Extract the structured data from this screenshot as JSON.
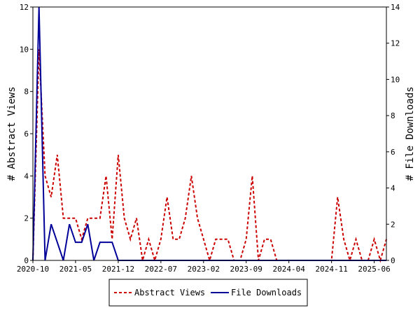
{
  "chart_data": {
    "type": "line",
    "title": "",
    "ylabel_left": "# Abstract Views",
    "ylabel_right": "# File Downloads",
    "ylim_left": [
      0,
      12
    ],
    "ylim_right": [
      0,
      14
    ],
    "yticks_left": [
      0,
      2,
      4,
      6,
      8,
      10,
      12
    ],
    "yticks_right": [
      0,
      2,
      4,
      6,
      8,
      10,
      12,
      14
    ],
    "x_tick_labels": [
      "2020-10",
      "2021-05",
      "2021-12",
      "2022-07",
      "2023-02",
      "2023-09",
      "2024-04",
      "2024-11",
      "2025-06"
    ],
    "x_range_months": [
      "2020-10",
      "2025-08"
    ],
    "grid": false,
    "legend_position": "bottom",
    "series": [
      {
        "name": "Abstract Views",
        "axis": "left",
        "color": "#cc0000",
        "style": "dashed",
        "x": [
          "2020-10",
          "2020-11",
          "2020-12",
          "2021-01",
          "2021-02",
          "2021-03",
          "2021-04",
          "2021-05",
          "2021-06",
          "2021-07",
          "2021-08",
          "2021-09",
          "2021-10",
          "2021-11",
          "2021-12",
          "2022-01",
          "2022-02",
          "2022-03",
          "2022-04",
          "2022-05",
          "2022-06",
          "2022-07",
          "2022-08",
          "2022-09",
          "2022-10",
          "2022-11",
          "2022-12",
          "2023-01",
          "2023-02",
          "2023-03",
          "2023-04",
          "2023-05",
          "2023-06",
          "2023-07",
          "2023-08",
          "2023-09",
          "2023-10",
          "2023-11",
          "2023-12",
          "2024-01",
          "2024-02",
          "2024-03",
          "2024-04",
          "2024-05",
          "2024-06",
          "2024-07",
          "2024-08",
          "2024-09",
          "2024-10",
          "2024-11",
          "2024-12",
          "2025-01",
          "2025-02",
          "2025-03",
          "2025-04",
          "2025-05",
          "2025-06",
          "2025-07",
          "2025-08"
        ],
        "values": [
          0,
          10,
          4,
          3,
          5,
          2,
          2,
          2,
          1,
          2,
          2,
          2,
          4,
          1,
          5,
          2,
          1,
          2,
          0,
          1,
          0,
          1,
          3,
          1,
          1,
          2,
          4,
          2,
          1,
          0,
          1,
          1,
          1,
          0,
          0,
          1,
          4,
          0,
          1,
          1,
          0,
          0,
          0,
          0,
          0,
          0,
          0,
          0,
          0,
          0,
          3,
          1,
          0,
          1,
          0,
          0,
          1,
          0,
          1
        ]
      },
      {
        "name": "File Downloads",
        "axis": "right",
        "color": "#000099",
        "style": "solid",
        "x": [
          "2020-10",
          "2020-11",
          "2020-12",
          "2021-01",
          "2021-02",
          "2021-03",
          "2021-04",
          "2021-05",
          "2021-06",
          "2021-07",
          "2021-08",
          "2021-09",
          "2021-10",
          "2021-11",
          "2021-12",
          "2022-01",
          "2022-02",
          "2022-03",
          "2022-04",
          "2022-05",
          "2022-06",
          "2022-07",
          "2022-08",
          "2022-09",
          "2022-10",
          "2022-11",
          "2022-12",
          "2023-01",
          "2023-02",
          "2023-03",
          "2023-04",
          "2023-05",
          "2023-06",
          "2023-07",
          "2023-08",
          "2023-09",
          "2023-10",
          "2023-11",
          "2023-12",
          "2024-01",
          "2024-02",
          "2024-03",
          "2024-04",
          "2024-05",
          "2024-06",
          "2024-07",
          "2024-08",
          "2024-09",
          "2024-10",
          "2024-11",
          "2024-12",
          "2025-01",
          "2025-02",
          "2025-03",
          "2025-04",
          "2025-05",
          "2025-06",
          "2025-07",
          "2025-08"
        ],
        "values": [
          0,
          14,
          0,
          2,
          1,
          0,
          2,
          1,
          1,
          2,
          0,
          1,
          1,
          1,
          0,
          0,
          0,
          0,
          0,
          0,
          0,
          0,
          0,
          0,
          0,
          0,
          0,
          0,
          0,
          0,
          0,
          0,
          0,
          0,
          0,
          0,
          0,
          0,
          0,
          0,
          0,
          0,
          0,
          0,
          0,
          0,
          0,
          0,
          0,
          0,
          0,
          0,
          0,
          0,
          0,
          0,
          0,
          0,
          0
        ]
      }
    ]
  }
}
